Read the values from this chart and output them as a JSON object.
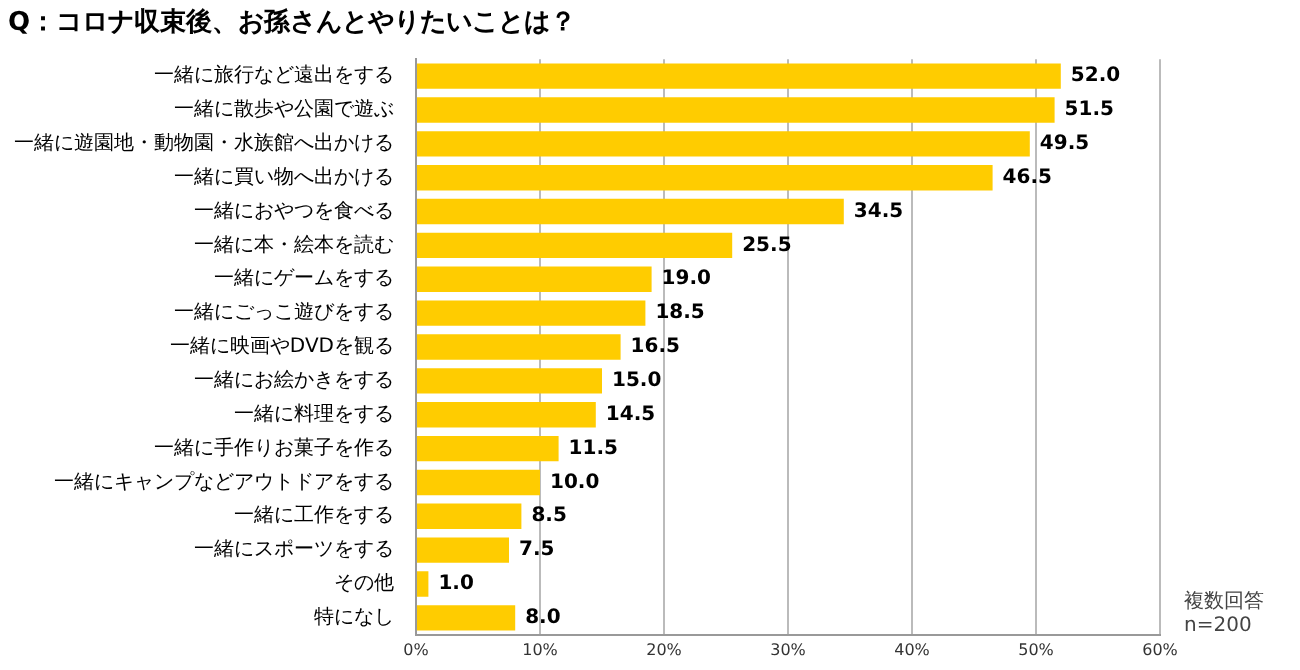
{
  "chart_data": {
    "type": "bar",
    "orientation": "horizontal",
    "title": "Q：コロナ収束後、お孫さんとやりたいことは？",
    "categories": [
      "一緒に旅行など遠出をする",
      "一緒に散歩や公園で遊ぶ",
      "一緒に遊園地・動物園・水族館へ出かける",
      "一緒に買い物へ出かける",
      "一緒におやつを食べる",
      "一緒に本・絵本を読む",
      "一緒にゲームをする",
      "一緒にごっこ遊びをする",
      "一緒に映画やDVDを観る",
      "一緒にお絵かきをする",
      "一緒に料理をする",
      "一緒に手作りお菓子を作る",
      "一緒にキャンプなどアウトドアをする",
      "一緒に工作をする",
      "一緒にスポーツをする",
      "その他",
      "特になし"
    ],
    "values": [
      52.0,
      51.5,
      49.5,
      46.5,
      34.5,
      25.5,
      19.0,
      18.5,
      16.5,
      15.0,
      14.5,
      11.5,
      10.0,
      8.5,
      7.5,
      1.0,
      8.0
    ],
    "value_labels": [
      "52.0",
      "51.5",
      "49.5",
      "46.5",
      "34.5",
      "25.5",
      "19.0",
      "18.5",
      "16.5",
      "15.0",
      "14.5",
      "11.5",
      "10.0",
      "8.5",
      "7.5",
      "1.0",
      "8.0"
    ],
    "color": "#ffcc00",
    "xlim": [
      0,
      60
    ],
    "xticks": [
      {
        "value": 0,
        "label": "0%"
      },
      {
        "value": 10,
        "label": "10%"
      },
      {
        "value": 20,
        "label": "20%"
      },
      {
        "value": 30,
        "label": "30%"
      },
      {
        "value": 40,
        "label": "40%"
      },
      {
        "value": 50,
        "label": "50%"
      },
      {
        "value": 60,
        "label": "60%"
      }
    ],
    "grid": "x",
    "legend": false,
    "annotations": [
      "複数回答",
      "n=200"
    ]
  }
}
